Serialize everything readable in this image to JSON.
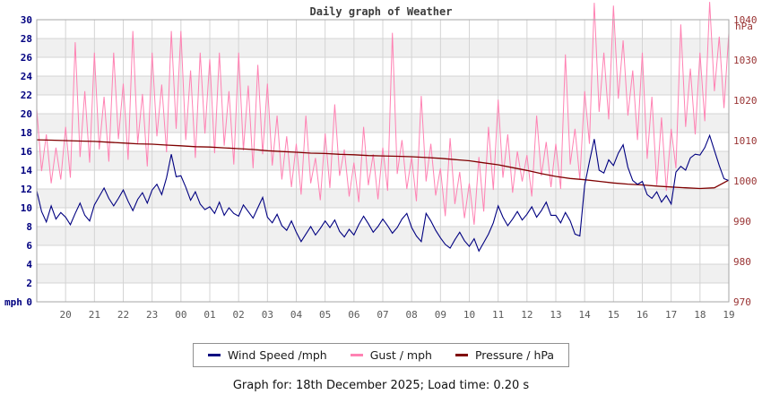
{
  "title": "Daily graph of Weather",
  "footer": "Graph for: 18th December 2025; Load time: 0.20 s",
  "colors": {
    "wind": "#000080",
    "gust": "#ff82b3",
    "pressure": "#7f0000",
    "left_axis_text": "#000080",
    "right_axis_text": "#993333",
    "x_axis_text": "#595959",
    "grid_line": "#d4d4d4",
    "band_fill": "#f0f0f0",
    "plot_border": "#a6a6a6",
    "plot_background": "#ffffff"
  },
  "legend": {
    "items": [
      {
        "label": "Wind Speed /mph",
        "color": "#000080"
      },
      {
        "label": "Gust / mph",
        "color": "#ff82b3"
      },
      {
        "label": "Pressure / hPa",
        "color": "#7f0000"
      }
    ]
  },
  "chart_data": {
    "type": "line",
    "title": "Daily graph of Weather",
    "x_axis": {
      "labels": [
        "20",
        "21",
        "22",
        "23",
        "00",
        "01",
        "02",
        "03",
        "04",
        "05",
        "06",
        "07",
        "08",
        "09",
        "10",
        "11",
        "12",
        "13",
        "14",
        "15",
        "16",
        "17",
        "18",
        "19"
      ],
      "hours_span": 24,
      "first_label_offset_hours": 1,
      "grid": "on"
    },
    "y_left": {
      "label": "mph",
      "min": 0,
      "max": 30,
      "tick_step": 2
    },
    "y_right": {
      "label": "hPa",
      "min": 970,
      "max": 1040,
      "tick_step": 10
    },
    "legend_position": "bottom-center",
    "series": [
      {
        "name": "Wind Speed /mph",
        "axis": "left",
        "color": "#000080",
        "interval_minutes": 10,
        "values": [
          11.8,
          9.6,
          8.5,
          10.2,
          8.8,
          9.5,
          9.0,
          8.2,
          9.4,
          10.5,
          9.2,
          8.6,
          10.3,
          11.2,
          12.1,
          11.0,
          10.2,
          11.0,
          11.9,
          10.7,
          9.7,
          10.9,
          11.6,
          10.5,
          11.9,
          12.5,
          11.4,
          13.2,
          15.7,
          13.3,
          13.4,
          12.2,
          10.8,
          11.7,
          10.4,
          9.8,
          10.1,
          9.4,
          10.6,
          9.2,
          10.0,
          9.4,
          9.1,
          10.3,
          9.6,
          8.9,
          10.0,
          11.1,
          9.0,
          8.4,
          9.3,
          8.1,
          7.6,
          8.6,
          7.4,
          6.4,
          7.2,
          8.0,
          7.1,
          7.8,
          8.6,
          7.9,
          8.7,
          7.5,
          6.9,
          7.7,
          7.1,
          8.2,
          9.1,
          8.3,
          7.4,
          8.0,
          8.8,
          8.1,
          7.3,
          7.9,
          8.8,
          9.4,
          7.9,
          7.0,
          6.4,
          9.4,
          8.6,
          7.6,
          6.8,
          6.1,
          5.7,
          6.6,
          7.4,
          6.5,
          5.9,
          6.7,
          5.4,
          6.3,
          7.2,
          8.4,
          10.2,
          9.0,
          8.1,
          8.8,
          9.6,
          8.7,
          9.3,
          10.1,
          9.0,
          9.7,
          10.6,
          9.2,
          9.2,
          8.4,
          9.5,
          8.6,
          7.2,
          7.0,
          12.4,
          14.9,
          17.3,
          14.0,
          13.7,
          15.1,
          14.5,
          15.8,
          16.7,
          14.3,
          12.9,
          12.5,
          12.8,
          11.4,
          11.0,
          11.7,
          10.6,
          11.3,
          10.4,
          13.8,
          14.4,
          14.0,
          15.3,
          15.7,
          15.6,
          16.4,
          17.7,
          16.1,
          14.5,
          13.1,
          12.9
        ]
      },
      {
        "name": "Gust / mph",
        "axis": "left",
        "color": "#ff82b3",
        "interval_minutes": 10,
        "values": [
          20.5,
          13.9,
          17.8,
          12.6,
          16.4,
          13.0,
          18.6,
          13.2,
          27.6,
          15.4,
          22.4,
          14.8,
          26.5,
          16.2,
          21.8,
          14.9,
          26.5,
          17.3,
          23.2,
          15.1,
          28.8,
          16.8,
          22.1,
          14.4,
          26.5,
          17.6,
          23.1,
          15.9,
          28.8,
          18.4,
          28.8,
          17.2,
          24.6,
          15.3,
          26.5,
          17.9,
          25.8,
          15.8,
          26.5,
          16.6,
          22.4,
          14.6,
          26.5,
          16.1,
          23.0,
          14.2,
          25.2,
          15.7,
          23.2,
          14.5,
          19.8,
          13.0,
          17.6,
          12.2,
          16.8,
          11.4,
          19.8,
          12.6,
          15.3,
          10.8,
          17.9,
          12.1,
          21.0,
          13.4,
          16.2,
          11.2,
          14.8,
          10.6,
          18.6,
          12.4,
          15.7,
          10.9,
          16.4,
          11.8,
          28.6,
          13.6,
          17.2,
          12.0,
          15.4,
          10.7,
          21.9,
          12.8,
          16.8,
          11.3,
          14.2,
          9.1,
          17.4,
          10.4,
          13.8,
          8.9,
          12.6,
          8.2,
          15.4,
          9.6,
          18.6,
          11.9,
          21.5,
          13.2,
          17.8,
          11.6,
          16.0,
          12.8,
          15.6,
          11.2,
          19.8,
          13.4,
          17.0,
          12.2,
          16.8,
          12.0,
          26.3,
          14.6,
          18.4,
          13.0,
          22.4,
          16.8,
          31.8,
          20.2,
          26.5,
          19.4,
          31.5,
          21.6,
          27.8,
          19.8,
          24.6,
          17.2,
          26.5,
          15.2,
          21.8,
          12.4,
          19.6,
          11.8,
          18.4,
          14.2,
          29.5,
          18.6,
          24.8,
          17.8,
          26.5,
          19.2,
          31.9,
          22.4,
          28.2,
          20.6,
          28.6
        ]
      },
      {
        "name": "Pressure / hPa",
        "axis": "right",
        "color": "#7f0000",
        "interval_minutes": 30,
        "values": [
          1010.2,
          1010.1,
          1010.0,
          1009.9,
          1009.8,
          1009.6,
          1009.4,
          1009.2,
          1009.1,
          1008.9,
          1008.7,
          1008.5,
          1008.4,
          1008.2,
          1008.0,
          1007.8,
          1007.5,
          1007.3,
          1007.1,
          1006.9,
          1006.8,
          1006.6,
          1006.5,
          1006.3,
          1006.2,
          1006.1,
          1006.0,
          1005.8,
          1005.6,
          1005.3,
          1005.0,
          1004.5,
          1004.0,
          1003.3,
          1002.6,
          1001.8,
          1001.1,
          1000.6,
          1000.3,
          999.9,
          999.5,
          999.2,
          999.0,
          998.7,
          998.5,
          998.3,
          998.1,
          998.3,
          1000.2
        ]
      }
    ]
  }
}
